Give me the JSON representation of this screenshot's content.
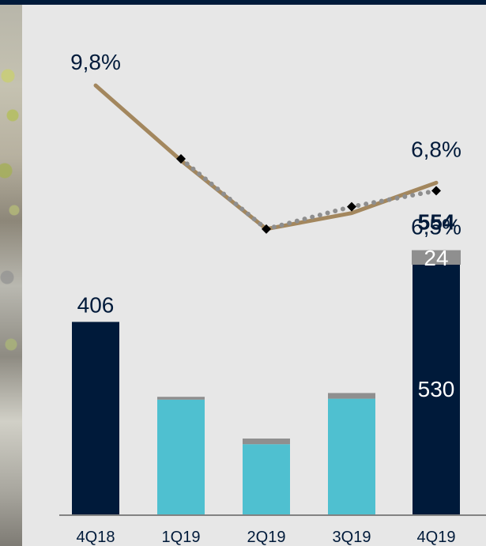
{
  "chart_data": {
    "type": "bar",
    "categories": [
      "4Q18",
      "1Q19",
      "2Q19",
      "3Q19",
      "4Q19"
    ],
    "bar_series": [
      {
        "values": [
          406,
          null,
          null,
          null,
          530
        ],
        "color": "#001a3a"
      },
      {
        "values": [
          null,
          242,
          148,
          244,
          null
        ],
        "color": "#4fc0d0"
      },
      {
        "values": [
          null,
          6,
          12,
          12,
          24
        ],
        "color": "#8f8f8f"
      }
    ],
    "bar_totals": [
      406,
      null,
      null,
      null,
      554
    ],
    "bar_labels": [
      "406",
      "",
      "",
      "",
      ""
    ],
    "component_labels": [
      {
        "category": "4Q19",
        "series_index": 0,
        "text": "530"
      },
      {
        "category": "4Q19",
        "series_index": 2,
        "text": "24"
      }
    ],
    "total_labels": [
      "",
      "",
      "",
      "",
      "554"
    ],
    "line_series": [
      {
        "values": [
          9.8,
          7.45,
          5.3,
          5.8,
          6.75
        ],
        "color": "#a3875e",
        "style": "solid"
      },
      {
        "values": [
          null,
          7.5,
          5.3,
          6.0,
          6.5
        ],
        "color": "#8e8e8e",
        "style": "dotted"
      }
    ],
    "marker_values": [
      null,
      7.5,
      5.3,
      6.0,
      6.5
    ],
    "line_labels": [
      {
        "category": "4Q18",
        "text": "9,8%"
      },
      {
        "category": "4Q19",
        "text": "6,8%"
      },
      {
        "category": "4Q19",
        "text": "6,5%"
      }
    ],
    "bar_ylim": [
      0,
      680
    ],
    "line_ylim": [
      4.9,
      10.2
    ],
    "legend": "none",
    "grid": "off"
  }
}
